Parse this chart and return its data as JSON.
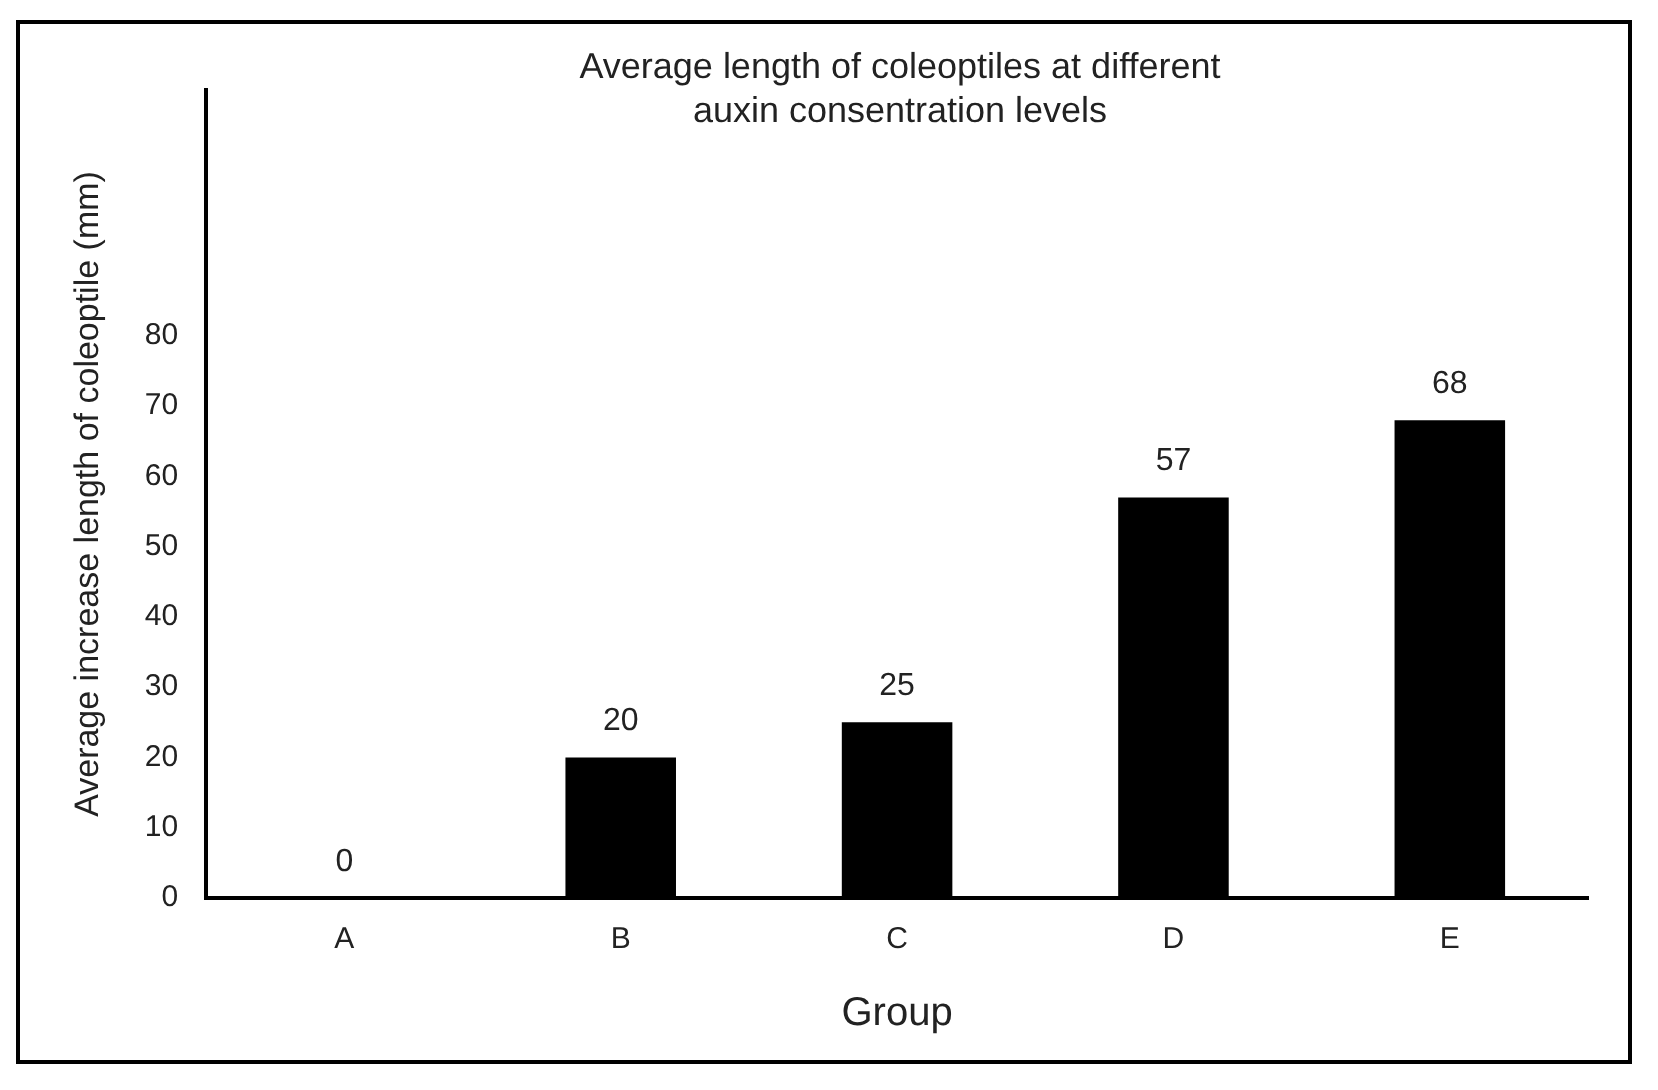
{
  "chart_data": {
    "type": "bar",
    "title": "Average length of coleoptiles at different auxin consentration levels",
    "xlabel": "Group",
    "ylabel": "Average increase length of coleoptile (mm)",
    "categories": [
      "A",
      "B",
      "C",
      "D",
      "E"
    ],
    "values": [
      0,
      20,
      25,
      57,
      68
    ],
    "color": "#000000",
    "ylim": [
      0,
      115
    ],
    "yticks": [
      0,
      10,
      20,
      30,
      40,
      50,
      60,
      70,
      80
    ],
    "grid": false,
    "legend": false,
    "data_labels": true
  }
}
